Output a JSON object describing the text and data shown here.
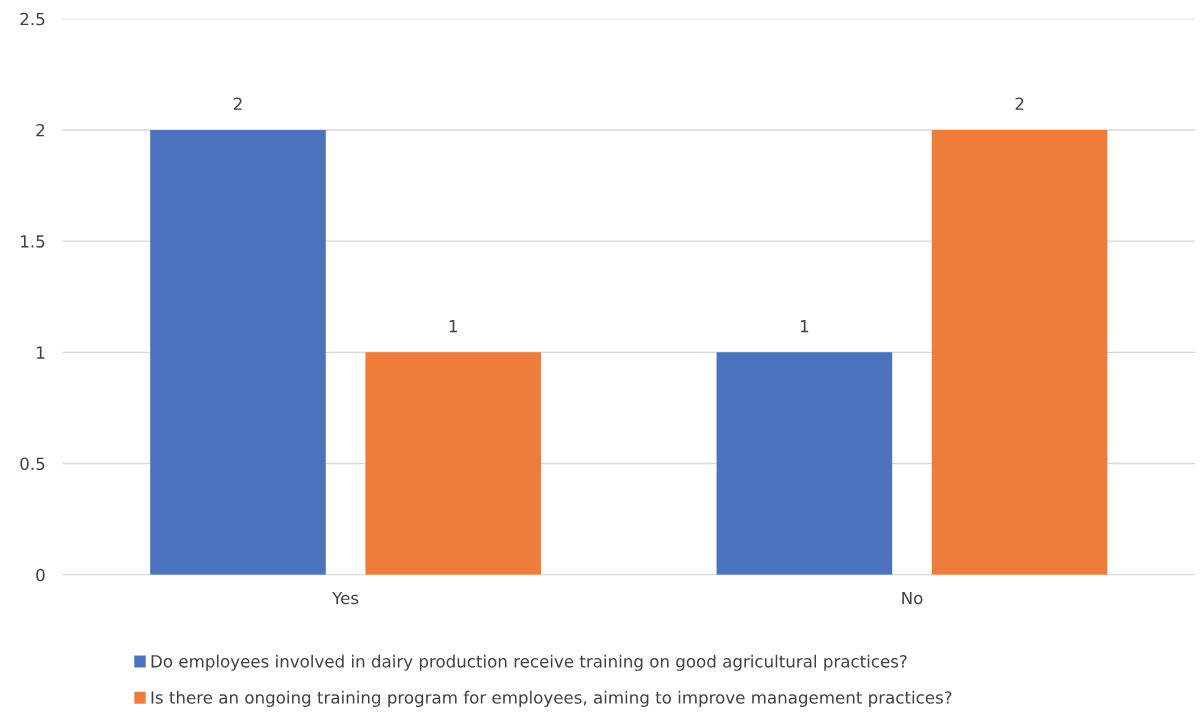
{
  "chart_data": {
    "type": "bar",
    "categories": [
      "Yes",
      "No"
    ],
    "series": [
      {
        "name": "Do employees involved in dairy production receive training on good agricultural practices?",
        "color": "#4a72bd",
        "values": [
          2,
          1
        ]
      },
      {
        "name": "Is there an ongoing training program for employees, aiming to improve management practices?",
        "color": "#ee7d3b",
        "values": [
          1,
          2
        ]
      }
    ],
    "ylim": [
      0,
      2.5
    ],
    "yticks": [
      0,
      0.5,
      1,
      1.5,
      2,
      2.5
    ],
    "grid": "y",
    "legend": "bottom",
    "data_labels": true
  }
}
